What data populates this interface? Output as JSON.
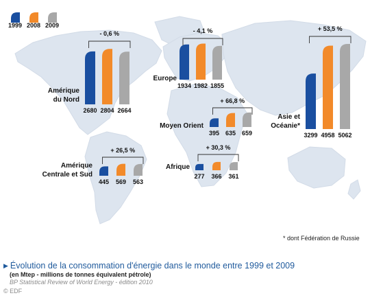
{
  "colors": {
    "map": "#dde5ef",
    "map_edge": "#d2dbe7",
    "bracket": "#333333",
    "text": "#111111",
    "series": [
      "#1a4fa0",
      "#f28a2a",
      "#a8a8a8"
    ]
  },
  "legend": {
    "items": [
      "1999",
      "2008",
      "2009"
    ],
    "icon": "bar-swatch"
  },
  "chart_data": {
    "type": "bar",
    "title": "Évolution de la consommation d'énergie dans le monde entre 1999 et 2009",
    "unit": "(en Mtep - millions de tonnes équivalent pétrole)",
    "series_names": [
      "1999",
      "2008",
      "2009"
    ],
    "regions": [
      {
        "name": "Amérique\ndu Nord",
        "values": [
          2680,
          2804,
          2664
        ],
        "change": "- 0,6 %"
      },
      {
        "name": "Europe",
        "values": [
          1934,
          1982,
          1855
        ],
        "change": "- 4,1 %"
      },
      {
        "name": "Asie et\nOcéanie*",
        "values": [
          3299,
          4958,
          5062
        ],
        "change": "+ 53,5 %"
      },
      {
        "name": "Moyen Orient",
        "values": [
          395,
          635,
          659
        ],
        "change": "+ 66,8 %"
      },
      {
        "name": "Amérique\nCentrale et Sud",
        "values": [
          445,
          569,
          563
        ],
        "change": "+ 26,5 %"
      },
      {
        "name": "Afrique",
        "values": [
          277,
          366,
          361
        ],
        "change": "+ 30,3 %"
      }
    ]
  },
  "footnote": "* dont Fédération de Russie",
  "caption": {
    "title": "Évolution de la consommation d'énergie dans le monde entre 1999 et 2009",
    "subtitle": "(en Mtep - millions de tonnes équivalent pétrole)",
    "source": "BP Statistical Review of World Energy - édition 2010",
    "copyright": "© EDF"
  }
}
